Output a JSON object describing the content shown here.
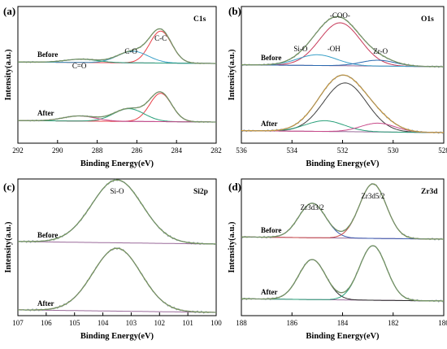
{
  "colors": {
    "raw": "#6d7f8d",
    "fitted": "#7a9e4b",
    "background": "#9a6a9a"
  },
  "chart_data": [
    {
      "type": "line",
      "panel": "(a)",
      "tag": "C1s",
      "xlabel": "Binding Energy(eV)",
      "ylabel": "Intensity(a.u.)",
      "xlim": [
        292,
        282
      ],
      "x_ticks": [
        292,
        290,
        288,
        286,
        284,
        282
      ],
      "x_reversed": true,
      "grid": false,
      "annotations": [
        {
          "text": "C-C",
          "x": 284.8
        },
        {
          "text": "C-O",
          "x": 286.3
        },
        {
          "text": "C=O",
          "x": 288.9
        }
      ],
      "stack_labels": [
        "Before",
        "After"
      ],
      "peaks": {
        "Before": [
          {
            "center": 284.8,
            "height": 0.88,
            "fwhm": 1.3,
            "color": "#e8424a"
          },
          {
            "center": 286.2,
            "height": 0.32,
            "fwhm": 1.8,
            "color": "#3aa0c8"
          },
          {
            "center": 288.8,
            "height": 0.09,
            "fwhm": 1.9,
            "color": "#2aa07a"
          }
        ],
        "After": [
          {
            "center": 284.8,
            "height": 0.78,
            "fwhm": 1.3,
            "color": "#e8424a"
          },
          {
            "center": 286.4,
            "height": 0.35,
            "fwhm": 1.8,
            "color": "#2aa07a"
          },
          {
            "center": 288.9,
            "height": 0.14,
            "fwhm": 1.9,
            "color": "#c84a8a"
          }
        ]
      }
    },
    {
      "type": "line",
      "panel": "(b)",
      "tag": "O1s",
      "xlabel": "Binding Energy(eV)",
      "ylabel": "Intensity(a.u.)",
      "xlim": [
        536,
        528
      ],
      "x_ticks": [
        536,
        534,
        532,
        530,
        528
      ],
      "x_reversed": true,
      "grid": false,
      "annotations": [
        {
          "text": "-COO-",
          "x": 532.1
        },
        {
          "text": "Si-O",
          "x": 533.4
        },
        {
          "text": "-OH",
          "x": 532.6
        },
        {
          "text": "Zr-O",
          "x": 530.5
        }
      ],
      "stack_labels": [
        "Before",
        "After"
      ],
      "peaks": {
        "Before": [
          {
            "center": 532.1,
            "height": 0.88,
            "fwhm": 1.9,
            "color": "#c83a5a"
          },
          {
            "center": 533.0,
            "height": 0.22,
            "fwhm": 1.8,
            "color": "#3aa0c8"
          },
          {
            "center": 530.6,
            "height": 0.12,
            "fwhm": 1.6,
            "color": "#2a6ab0"
          }
        ],
        "After": [
          {
            "center": 531.9,
            "height": 1.0,
            "fwhm": 2.0,
            "color": "#404040"
          },
          {
            "center": 532.7,
            "height": 0.22,
            "fwhm": 1.8,
            "color": "#2aa07a"
          },
          {
            "center": 530.6,
            "height": 0.18,
            "fwhm": 1.6,
            "color": "#c84a8a"
          }
        ]
      },
      "envelope_color_after": "#e8a020"
    },
    {
      "type": "line",
      "panel": "(c)",
      "tag": "Si2p",
      "xlabel": "Binding Energy(eV)",
      "ylabel": "Intensity(a.u.)",
      "xlim": [
        107,
        100
      ],
      "x_ticks": [
        107,
        106,
        105,
        104,
        103,
        102,
        101,
        100
      ],
      "x_reversed": true,
      "grid": false,
      "annotations": [
        {
          "text": "Si-O",
          "x": 103.5
        }
      ],
      "stack_labels": [
        "Before",
        "After"
      ],
      "peaks": {
        "Before": [
          {
            "center": 103.5,
            "height": 1.0,
            "fwhm": 2.1,
            "color": "#2a8060"
          }
        ],
        "After": [
          {
            "center": 103.5,
            "height": 1.0,
            "fwhm": 2.0,
            "color": "#b04a4a"
          }
        ]
      }
    },
    {
      "type": "line",
      "panel": "(d)",
      "tag": "Zr3d",
      "xlabel": "Binding Energy(eV)",
      "ylabel": "Intensity(a.u.)",
      "xlim": [
        188,
        180
      ],
      "x_ticks": [
        188,
        186,
        184,
        182,
        180
      ],
      "x_reversed": true,
      "grid": false,
      "annotations": [
        {
          "text": "Zr3d3/2",
          "x": 185.2
        },
        {
          "text": "Zr3d5/2",
          "x": 182.8
        }
      ],
      "stack_labels": [
        "Before",
        "After"
      ],
      "peaks": {
        "Before": [
          {
            "center": 185.2,
            "height": 0.62,
            "fwhm": 1.25,
            "color": "#3a5ab0"
          },
          {
            "center": 182.8,
            "height": 0.98,
            "fwhm": 1.25,
            "color": "#c84a4a"
          }
        ],
        "After": [
          {
            "center": 185.2,
            "height": 0.72,
            "fwhm": 1.25,
            "color": "#2a2a2a"
          },
          {
            "center": 182.8,
            "height": 0.98,
            "fwhm": 1.25,
            "color": "#2aa07a"
          }
        ]
      }
    }
  ]
}
